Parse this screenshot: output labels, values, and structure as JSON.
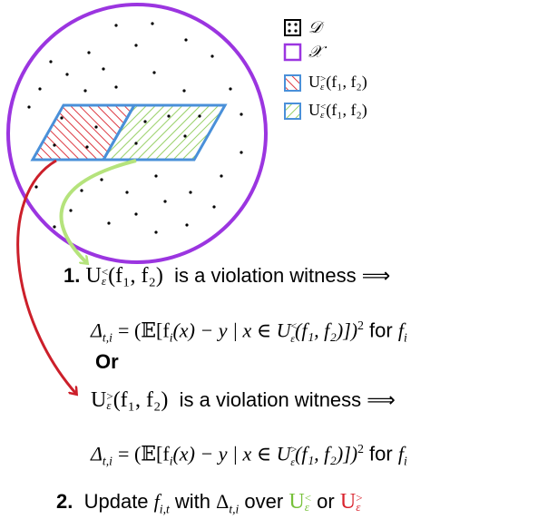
{
  "legend": {
    "d_symbol": "𝒟",
    "x_symbol": "𝒳",
    "u_greater": "U",
    "u_greater_sup": ">",
    "u_greater_sub": "ε",
    "u_greater_args": "(f₁, f₂)",
    "u_less": "U",
    "u_less_sup": "<",
    "u_less_sub": "ε",
    "u_less_args": "(f₁, f₂)"
  },
  "colors": {
    "circle": "#9b35e0",
    "region_border": "#4a90d9",
    "red_hatch": "#d9232d",
    "green_hatch": "#8ccb55",
    "red_arrow": "#cc1f2a",
    "green_arrow": "#b5e37c"
  },
  "step1": {
    "number": "1.",
    "set": "U",
    "set_sup": "<",
    "set_sub": "ε",
    "set_args": "(f₁, f₂)",
    "phrase": "is a violation witness ⟹",
    "formula_lhs": "Δ",
    "formula_lhs_sub": "t,i",
    "formula_body": "= (𝔼[f",
    "formula_mid": "(x) − y  |  x ∈ U",
    "formula_args": "(f₁, f₂)])",
    "formula_sq": "2",
    "formula_for": "for",
    "formula_f": "f",
    "formula_f_sub": "i",
    "or": "Or"
  },
  "step1b": {
    "set": "U",
    "set_sup": ">",
    "set_sub": "ε",
    "set_args": "(f₁, f₂)",
    "phrase": "is a violation witness ⟹",
    "formula_lhs": "Δ",
    "formula_lhs_sub": "t,i",
    "formula_body": "= (𝔼[f",
    "formula_mid": "(x) − y  |  x ∈ U",
    "formula_args": "(f₁, f₂)])",
    "formula_sq": "2",
    "formula_for": "for",
    "formula_f": "f",
    "formula_f_sub": "i"
  },
  "step2": {
    "number": "2.",
    "text_update": "Update",
    "f": "f",
    "f_sub": "i,t",
    "text_with": "with",
    "delta": "Δ",
    "delta_sub": "t,i",
    "text_over": "over",
    "u_less": "U",
    "u_less_sup": "<",
    "u_less_sub": "ε",
    "text_or": "or",
    "u_greater": "U",
    "u_greater_sup": ">",
    "u_greater_sub": "ε"
  }
}
